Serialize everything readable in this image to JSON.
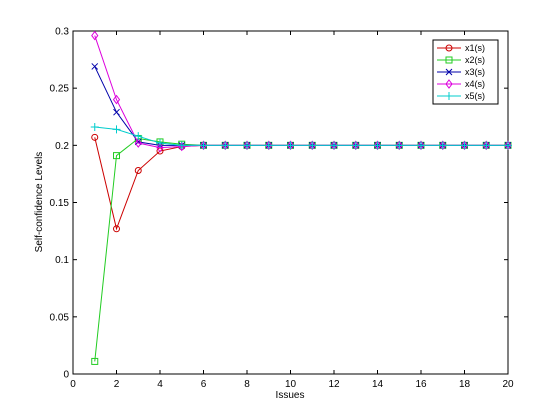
{
  "chart_data": {
    "type": "line",
    "title": "",
    "xlabel": "Issues",
    "ylabel": "Self-confidence Levels",
    "xlim": [
      0,
      20
    ],
    "ylim": [
      0,
      0.3
    ],
    "xticks": [
      0,
      2,
      4,
      6,
      8,
      10,
      12,
      14,
      16,
      18,
      20
    ],
    "yticks": [
      0,
      0.05,
      0.1,
      0.15,
      0.2,
      0.25,
      0.3
    ],
    "xtick_labels": [
      "0",
      "2",
      "4",
      "6",
      "8",
      "10",
      "12",
      "14",
      "16",
      "18",
      "20"
    ],
    "ytick_labels": [
      "0",
      "0.05",
      "0.1",
      "0.15",
      "0.2",
      "0.25",
      "0.3"
    ],
    "grid": false,
    "legend_position": "top-right",
    "x": [
      1,
      2,
      3,
      4,
      5,
      6,
      7,
      8,
      9,
      10,
      11,
      12,
      13,
      14,
      15,
      16,
      17,
      18,
      19,
      20
    ],
    "series": [
      {
        "name": "x1(s)",
        "color": "#cc0000",
        "marker": "circle",
        "values": [
          0.207,
          0.127,
          0.178,
          0.195,
          0.199,
          0.2,
          0.2,
          0.2,
          0.2,
          0.2,
          0.2,
          0.2,
          0.2,
          0.2,
          0.2,
          0.2,
          0.2,
          0.2,
          0.2,
          0.2
        ]
      },
      {
        "name": "x2(s)",
        "color": "#22cc22",
        "marker": "square",
        "values": [
          0.011,
          0.191,
          0.206,
          0.203,
          0.201,
          0.2,
          0.2,
          0.2,
          0.2,
          0.2,
          0.2,
          0.2,
          0.2,
          0.2,
          0.2,
          0.2,
          0.2,
          0.2,
          0.2,
          0.2
        ]
      },
      {
        "name": "x3(s)",
        "color": "#0000aa",
        "marker": "x",
        "values": [
          0.269,
          0.229,
          0.203,
          0.2,
          0.2,
          0.2,
          0.2,
          0.2,
          0.2,
          0.2,
          0.2,
          0.2,
          0.2,
          0.2,
          0.2,
          0.2,
          0.2,
          0.2,
          0.2,
          0.2
        ]
      },
      {
        "name": "x4(s)",
        "color": "#dd00dd",
        "marker": "diamond",
        "values": [
          0.296,
          0.24,
          0.202,
          0.198,
          0.199,
          0.2,
          0.2,
          0.2,
          0.2,
          0.2,
          0.2,
          0.2,
          0.2,
          0.2,
          0.2,
          0.2,
          0.2,
          0.2,
          0.2,
          0.2
        ]
      },
      {
        "name": "x5(s)",
        "color": "#00cccc",
        "marker": "plus",
        "values": [
          0.216,
          0.214,
          0.208,
          0.202,
          0.2,
          0.2,
          0.2,
          0.2,
          0.2,
          0.2,
          0.2,
          0.2,
          0.2,
          0.2,
          0.2,
          0.2,
          0.2,
          0.2,
          0.2,
          0.2
        ]
      }
    ]
  }
}
